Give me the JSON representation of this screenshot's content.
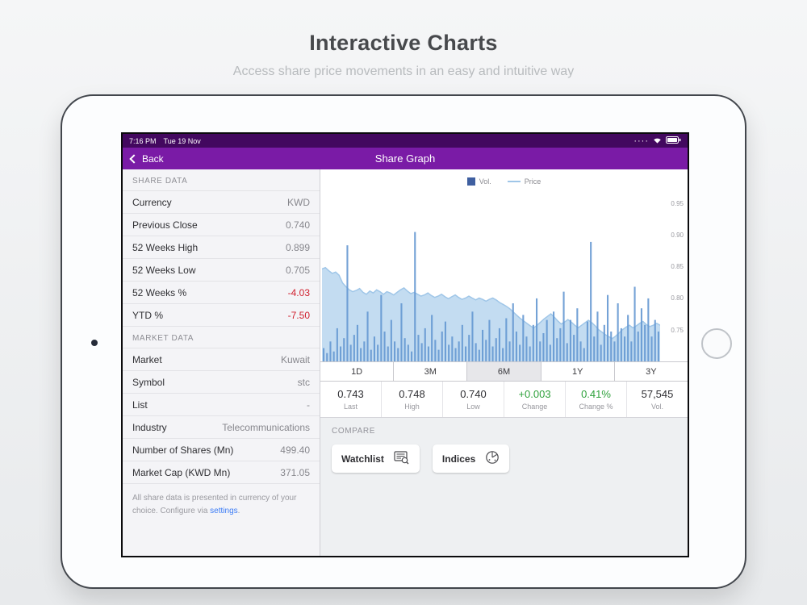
{
  "page": {
    "title": "Interactive Charts",
    "subtitle": "Access share price movements in an easy and intuitive way"
  },
  "colors": {
    "nav_purple": "#7a1ba6",
    "status_purple": "#43085f",
    "negative": "#d0202e",
    "positive": "#2fa13c",
    "link_blue": "#3a7bf6",
    "vol_bar": "#6598d2",
    "vol_legend": "#3f5fa0",
    "price_fill": "#c3dcf1",
    "price_line": "#9fc6e8"
  },
  "statusbar": {
    "time": "7:16 PM",
    "date": "Tue 19 Nov",
    "signal_dots": "····"
  },
  "navbar": {
    "back_label": "Back",
    "title": "Share Graph"
  },
  "sidebar": {
    "sections": [
      {
        "header": "SHARE DATA",
        "rows": [
          {
            "label": "Currency",
            "value": "KWD"
          },
          {
            "label": "Previous Close",
            "value": "0.740"
          },
          {
            "label": "52 Weeks High",
            "value": "0.899"
          },
          {
            "label": "52 Weeks Low",
            "value": "0.705"
          },
          {
            "label": "52 Weeks %",
            "value": "-4.03"
          },
          {
            "label": "YTD %",
            "value": "-7.50"
          }
        ]
      },
      {
        "header": "MARKET DATA",
        "rows": [
          {
            "label": "Market",
            "value": "Kuwait"
          },
          {
            "label": "Symbol",
            "value": "stc"
          },
          {
            "label": "List",
            "value": "-"
          },
          {
            "label": "Industry",
            "value": "Telecommunications"
          },
          {
            "label": "Number of Shares (Mn)",
            "value": "499.40"
          },
          {
            "label": "Market Cap (KWD Mn)",
            "value": "371.05"
          }
        ]
      }
    ],
    "footnote_text": "All share data is presented in currency of your choice. Configure via ",
    "footnote_link": "settings",
    "footnote_period": "."
  },
  "chart_data": {
    "type": "area",
    "title": "",
    "xlabel": "",
    "ylabel": "",
    "legend": [
      "Vol.",
      "Price"
    ],
    "legend_position": "top-center",
    "grid": false,
    "ylim": [
      0.7,
      0.97
    ],
    "y_ticks": [
      "0.95",
      "0.90",
      "0.85",
      "0.80",
      "0.75"
    ],
    "series": [
      {
        "name": "Vol.",
        "type": "bar",
        "values": [
          8,
          5,
          12,
          6,
          20,
          9,
          14,
          70,
          10,
          16,
          22,
          8,
          12,
          30,
          7,
          15,
          10,
          40,
          18,
          9,
          25,
          12,
          8,
          35,
          14,
          10,
          6,
          78,
          16,
          11,
          20,
          9,
          28,
          13,
          7,
          18,
          24,
          10,
          15,
          8,
          12,
          22,
          9,
          16,
          30,
          11,
          7,
          19,
          13,
          25,
          9,
          14,
          20,
          8,
          26,
          12,
          35,
          18,
          10,
          28,
          15,
          9,
          22,
          38,
          12,
          17,
          25,
          10,
          30,
          14,
          20,
          42,
          11,
          25,
          16,
          32,
          12,
          8,
          24,
          72,
          15,
          30,
          10,
          22,
          40,
          18,
          12,
          35,
          20,
          15,
          28,
          12,
          45,
          18,
          32,
          22,
          38,
          15,
          25,
          18
        ]
      },
      {
        "name": "Price",
        "type": "area",
        "values": [
          0.846,
          0.848,
          0.843,
          0.839,
          0.841,
          0.836,
          0.824,
          0.818,
          0.813,
          0.81,
          0.812,
          0.815,
          0.809,
          0.806,
          0.811,
          0.808,
          0.813,
          0.81,
          0.806,
          0.81,
          0.808,
          0.805,
          0.809,
          0.813,
          0.816,
          0.811,
          0.807,
          0.809,
          0.806,
          0.803,
          0.805,
          0.808,
          0.804,
          0.801,
          0.803,
          0.806,
          0.802,
          0.799,
          0.802,
          0.805,
          0.801,
          0.798,
          0.8,
          0.803,
          0.8,
          0.797,
          0.8,
          0.798,
          0.795,
          0.798,
          0.8,
          0.797,
          0.793,
          0.79,
          0.787,
          0.783,
          0.778,
          0.773,
          0.768,
          0.764,
          0.76,
          0.756,
          0.753,
          0.757,
          0.762,
          0.767,
          0.771,
          0.775,
          0.77,
          0.764,
          0.759,
          0.762,
          0.766,
          0.762,
          0.757,
          0.753,
          0.757,
          0.761,
          0.765,
          0.761,
          0.756,
          0.75,
          0.746,
          0.742,
          0.739,
          0.736,
          0.74,
          0.745,
          0.75,
          0.754,
          0.757,
          0.753,
          0.756,
          0.76,
          0.763,
          0.758,
          0.755,
          0.757,
          0.76,
          0.757
        ]
      }
    ]
  },
  "ranges": {
    "options": [
      "1D",
      "3M",
      "6M",
      "1Y",
      "3Y"
    ],
    "selected": "6M"
  },
  "stats": [
    {
      "value": "0.743",
      "label": "Last"
    },
    {
      "value": "0.748",
      "label": "High"
    },
    {
      "value": "0.740",
      "label": "Low"
    },
    {
      "value": "+0.003",
      "label": "Change"
    },
    {
      "value": "0.41%",
      "label": "Change %"
    },
    {
      "value": "57,545",
      "label": "Vol."
    }
  ],
  "compare": {
    "header": "COMPARE",
    "buttons": [
      {
        "label": "Watchlist"
      },
      {
        "label": "Indices"
      }
    ]
  }
}
